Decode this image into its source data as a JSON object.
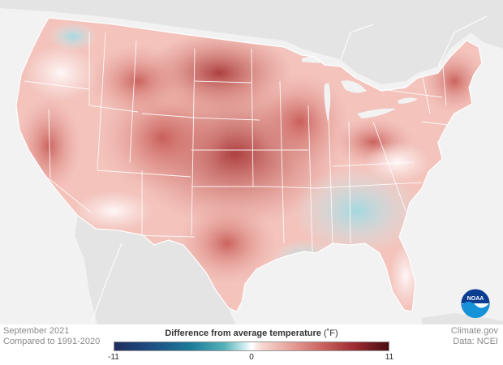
{
  "map": {
    "title": "",
    "region": "Contiguous United States",
    "colors": {
      "ocean_land_bg": "#f2f2f2",
      "neighbor_land": "#e4e4e4",
      "state_border": "#ffffff",
      "warm_strong": "#b2403f",
      "warm_mid": "#d97a72",
      "warm_light": "#f0b8b0",
      "near_normal": "#fbeeec",
      "cool_light": "#bfe6ec"
    }
  },
  "footer": {
    "date_line1": "September 2021",
    "date_line2": "Compared to 1991-2020",
    "credit_line1": "Climate.gov",
    "credit_line2": "Data: NCEI"
  },
  "legend": {
    "title": "Difference from average temperature",
    "unit": "(˚F)",
    "min_label": "-11",
    "mid_label": "0",
    "max_label": "11",
    "range": [
      -11,
      11
    ]
  },
  "logo": {
    "text": "NOAA"
  }
}
